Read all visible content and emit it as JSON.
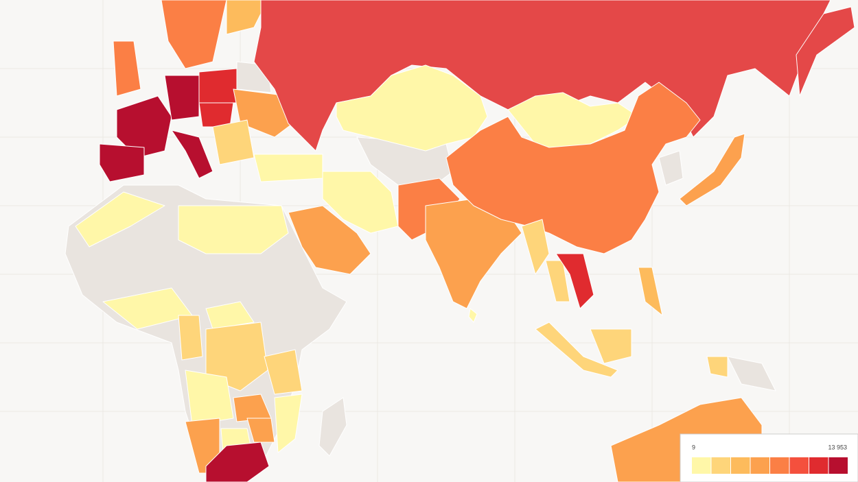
{
  "legend": {
    "ticks": [
      9,
      {
        "value": 13953,
        "label": "13 953"
      }
    ],
    "colors": [
      "#fff7a8",
      "#fed57a",
      "#fdbb5c",
      "#fca14e",
      "#fb7f45",
      "#f4503d",
      "#e02b2f",
      "#b70f2f"
    ]
  }
}
